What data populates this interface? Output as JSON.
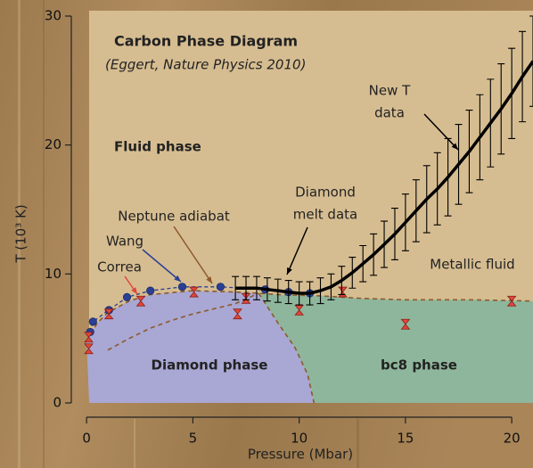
{
  "chart_data": {
    "type": "phase-diagram",
    "title": "Carbon Phase Diagram",
    "subtitle": "(Eggert, Nature Physics 2010)",
    "x_label": "Pressure (Mbar)",
    "y_label": "T (10³ K)",
    "xlim": [
      -0.3,
      21
    ],
    "ylim": [
      0,
      30
    ],
    "xticks": [
      0,
      5,
      10,
      15,
      20
    ],
    "yticks": [
      0,
      10,
      20,
      30
    ],
    "regions": [
      {
        "name": "Fluid phase",
        "color": "#d6bd91"
      },
      {
        "name": "Metallic fluid",
        "color": "#d6bd91"
      },
      {
        "name": "Diamond phase",
        "color": "#a9a7d3"
      },
      {
        "name": "bc8 phase",
        "color": "#8eb69c"
      }
    ],
    "melt_curve": {
      "color": "#8b5a2b",
      "x": [
        0,
        0.5,
        1,
        2,
        3,
        5,
        7,
        8.1,
        9,
        11,
        13,
        15,
        18,
        21
      ],
      "values": [
        4.8,
        6.2,
        7.0,
        7.9,
        8.4,
        8.7,
        8.6,
        8.5,
        8.4,
        8.3,
        8.1,
        8.0,
        8.0,
        7.9
      ]
    },
    "phase_boundary": {
      "color": "#8b5a2b",
      "x": [
        8.1,
        9,
        9.8,
        10.4,
        10.7
      ],
      "values": [
        8.5,
        6.2,
        4.3,
        2.2,
        0
      ]
    },
    "series": [
      {
        "name": "Neptune adiabat",
        "color": "#8b5a2b",
        "marker": "dashed",
        "x": [
          1,
          2,
          3,
          4,
          5,
          6,
          7,
          8.1
        ],
        "values": [
          4.1,
          5.0,
          5.8,
          6.4,
          6.9,
          7.3,
          7.7,
          8.5
        ]
      },
      {
        "name": "Wang",
        "color": "#2b3f95",
        "marker": "circle",
        "x": [
          0.17,
          0.3,
          1.05,
          1.9,
          3.0,
          4.5,
          6.3,
          8.4,
          9.5,
          10.5
        ],
        "values": [
          5.5,
          6.3,
          7.2,
          8.2,
          8.7,
          9.0,
          9.0,
          8.8,
          8.6,
          8.5
        ]
      },
      {
        "name": "Correa",
        "color": "#e0463a",
        "marker": "hourglass",
        "x": [
          0.1,
          0.1,
          1.05,
          2.55,
          5.05,
          7.1,
          7.5,
          10.0,
          12.05,
          15,
          20
        ],
        "values": [
          4.2,
          5.1,
          6.9,
          7.9,
          8.6,
          6.9,
          8.1,
          7.2,
          8.6,
          6.1,
          7.9
        ]
      },
      {
        "color": "#000000",
        "marker": "errorline",
        "x": [
          7,
          7.5,
          8,
          8.5,
          9,
          9.5,
          10,
          10.5,
          11,
          11.5,
          12,
          12.5,
          13,
          13.5,
          14,
          14.5,
          15,
          15.5,
          16,
          16.5,
          17,
          17.5,
          18,
          18.5,
          19,
          19.5,
          20,
          20.5,
          21
        ],
        "values": [
          8.9,
          8.9,
          8.9,
          8.8,
          8.7,
          8.6,
          8.5,
          8.5,
          8.7,
          9.0,
          9.5,
          10.1,
          10.8,
          11.5,
          12.3,
          13.1,
          14.0,
          14.9,
          15.8,
          16.6,
          17.5,
          18.5,
          19.5,
          20.6,
          21.7,
          22.8,
          24.0,
          25.3,
          26.5
        ],
        "errors": [
          0.9,
          0.9,
          0.9,
          0.9,
          0.9,
          0.9,
          0.9,
          0.9,
          1.0,
          1.0,
          1.1,
          1.2,
          1.4,
          1.6,
          1.8,
          2.0,
          2.2,
          2.4,
          2.6,
          2.8,
          3.0,
          3.1,
          3.2,
          3.3,
          3.4,
          3.5,
          3.5,
          3.5,
          3.5
        ]
      }
    ],
    "annotations": [
      "Diamond",
      "melt data",
      "New T",
      "data"
    ]
  }
}
